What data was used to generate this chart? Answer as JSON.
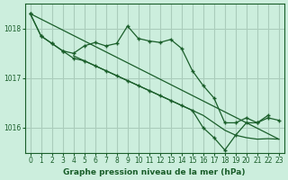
{
  "title": "Graphe pression niveau de la mer (hPa)",
  "bg_color": "#cceedd",
  "grid_color": "#aaccbb",
  "line_color": "#1a5e2a",
  "ylim": [
    1015.5,
    1018.5
  ],
  "xlim": [
    -0.5,
    23.5
  ],
  "yticks": [
    1016,
    1017,
    1018
  ],
  "xticks": [
    0,
    1,
    2,
    3,
    4,
    5,
    6,
    7,
    8,
    9,
    10,
    11,
    12,
    13,
    14,
    15,
    16,
    17,
    18,
    19,
    20,
    21,
    22,
    23
  ],
  "s1_x": [
    0,
    1,
    2,
    3,
    4,
    5,
    6,
    7,
    8,
    9,
    10,
    11,
    12,
    13,
    14,
    15,
    16,
    17,
    18,
    19,
    20,
    21,
    22
  ],
  "s1_y": [
    1018.3,
    1017.85,
    1017.7,
    1017.55,
    1017.5,
    1017.65,
    1017.72,
    1017.65,
    1017.7,
    1018.05,
    1017.8,
    1017.75,
    1017.72,
    1017.78,
    1017.6,
    1017.15,
    1016.85,
    1016.6,
    1016.1,
    1016.1,
    1016.2,
    1016.1,
    1016.25
  ],
  "s2_x": [
    0,
    1,
    2,
    3,
    4,
    5,
    6,
    7,
    8,
    9,
    10,
    11,
    12,
    13,
    14,
    15,
    16,
    17,
    18,
    19,
    20,
    21,
    22,
    23
  ],
  "s2_y": [
    1018.3,
    1018.19,
    1018.08,
    1017.97,
    1017.86,
    1017.75,
    1017.64,
    1017.53,
    1017.42,
    1017.31,
    1017.2,
    1017.09,
    1016.98,
    1016.87,
    1016.76,
    1016.65,
    1016.54,
    1016.43,
    1016.32,
    1016.21,
    1016.1,
    1015.99,
    1015.88,
    1015.77
  ],
  "s3_x": [
    0,
    1,
    2,
    3,
    4,
    5,
    6,
    7,
    8,
    9,
    10,
    11,
    12,
    13,
    14,
    15,
    16,
    17,
    18,
    19,
    20,
    21,
    22,
    23
  ],
  "s3_y": [
    1018.3,
    1017.85,
    1017.7,
    1017.55,
    1017.4,
    1017.35,
    1017.25,
    1017.15,
    1017.05,
    1016.95,
    1016.85,
    1016.75,
    1016.65,
    1016.55,
    1016.45,
    1016.35,
    1016.0,
    1015.8,
    1015.55,
    1015.85,
    1016.1,
    1016.1,
    1016.2,
    1016.15
  ],
  "s4_x": [
    4,
    5,
    6,
    7,
    8,
    9,
    10,
    11,
    12,
    13,
    14,
    15,
    16,
    17,
    18,
    19,
    20,
    21,
    22,
    23
  ],
  "s4_y": [
    1017.45,
    1017.35,
    1017.25,
    1017.15,
    1017.05,
    1016.95,
    1016.85,
    1016.75,
    1016.65,
    1016.55,
    1016.45,
    1016.35,
    1016.25,
    1016.1,
    1015.95,
    1015.85,
    1015.8,
    1015.77,
    1015.78,
    1015.77
  ]
}
